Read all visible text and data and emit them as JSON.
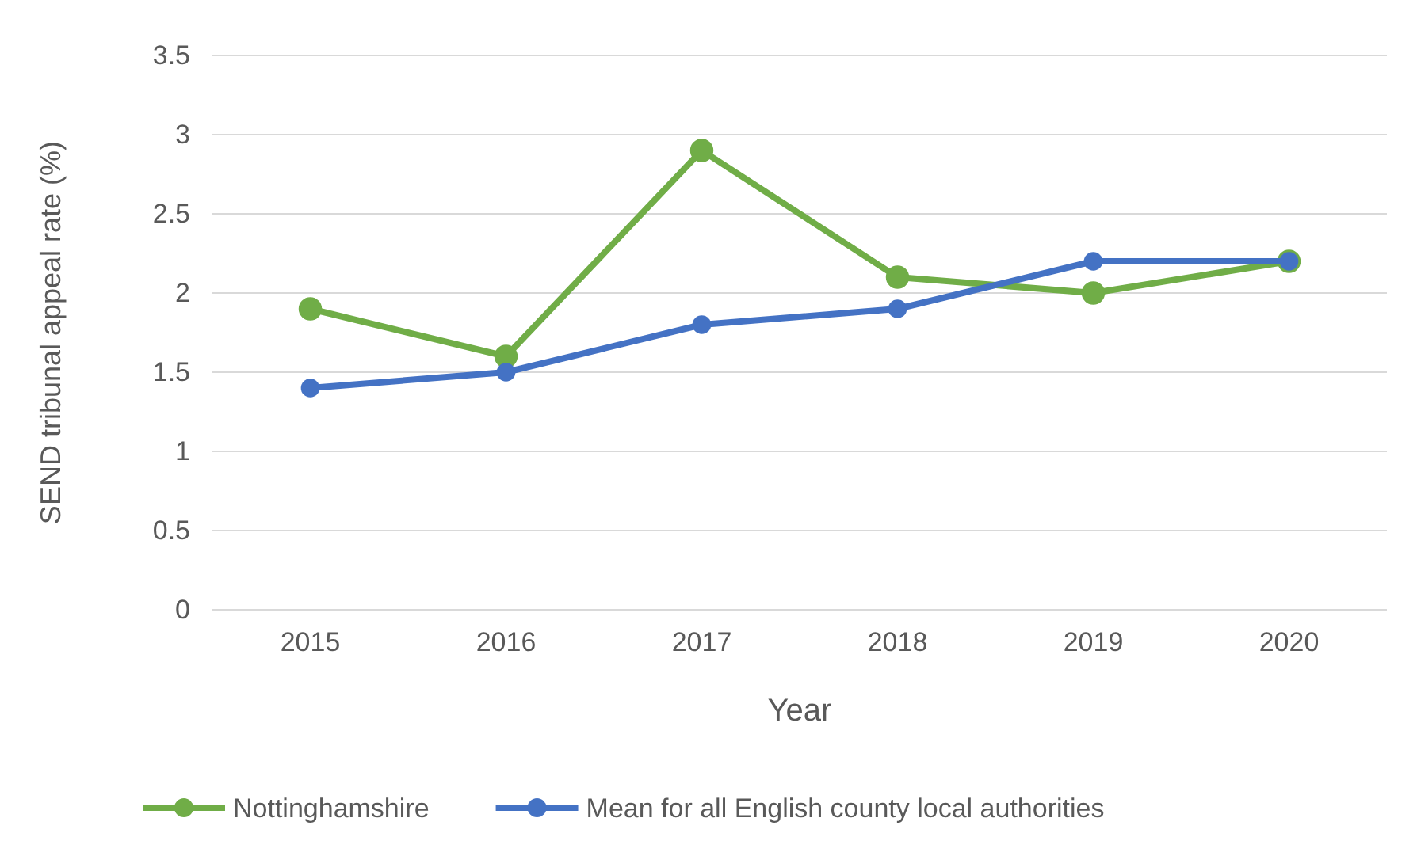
{
  "chart_data": {
    "type": "line",
    "xlabel": "Year",
    "ylabel": "SEND tribunal appeal rate (%)",
    "categories": [
      "2015",
      "2016",
      "2017",
      "2018",
      "2019",
      "2020"
    ],
    "series": [
      {
        "name": "Nottinghamshire",
        "color": "#70ad47",
        "values": [
          1.9,
          1.6,
          2.9,
          2.1,
          2.0,
          2.2
        ]
      },
      {
        "name": "Mean for all English county local authorities",
        "color": "#4472c4",
        "values": [
          1.4,
          1.5,
          1.8,
          1.9,
          2.2,
          2.2
        ]
      }
    ],
    "ylim": [
      0,
      3.5
    ],
    "yticks": [
      0,
      0.5,
      1,
      1.5,
      2,
      2.5,
      3,
      3.5
    ],
    "grid": "y",
    "legend": "bottom",
    "marker": "circle",
    "line_style": "solid"
  }
}
